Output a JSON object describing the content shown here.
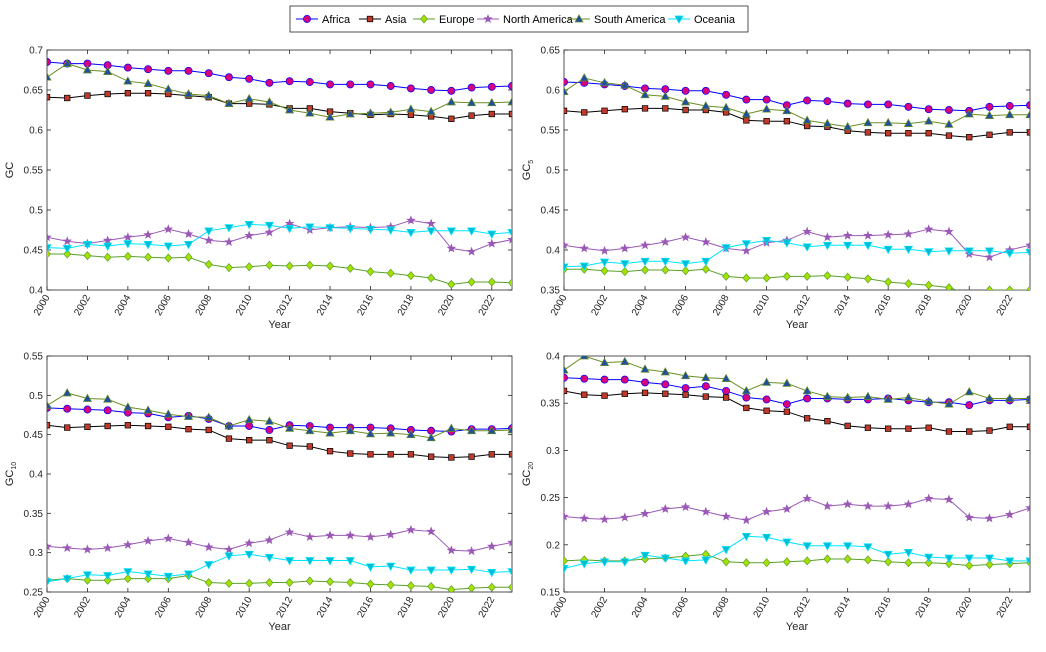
{
  "legend": [
    {
      "name": "Africa",
      "color": "#0000ff",
      "marker": "circle",
      "fill": "#d9007e"
    },
    {
      "name": "Asia",
      "color": "#000000",
      "marker": "square",
      "fill": "#c0392b"
    },
    {
      "name": "Europe",
      "color": "#5aa02c",
      "marker": "diamond",
      "fill": "#a5e000"
    },
    {
      "name": "North America",
      "color": "#9b59b6",
      "marker": "star",
      "fill": "#9b59b6"
    },
    {
      "name": "South America",
      "color": "#6b8e23",
      "marker": "triangle-up",
      "fill": "#1f4fa0"
    },
    {
      "name": "Oceania",
      "color": "#00e5ff",
      "marker": "triangle-down",
      "fill": "#00bcd4"
    }
  ],
  "chart_data": [
    {
      "type": "line",
      "ylabel": "GC",
      "ylabel_sub": "",
      "xlabel": "Year",
      "xlim": [
        2000,
        2023
      ],
      "ylim": [
        0.4,
        0.7
      ],
      "yticks": [
        "0.4",
        "0.45",
        "0.5",
        "0.55",
        "0.6",
        "0.65",
        "0.7"
      ],
      "xticks": [
        "2000",
        "2002",
        "2004",
        "2006",
        "2008",
        "2010",
        "2012",
        "2014",
        "2016",
        "2018",
        "2020",
        "2022"
      ],
      "x": [
        2000,
        2001,
        2002,
        2003,
        2004,
        2005,
        2006,
        2007,
        2008,
        2009,
        2010,
        2011,
        2012,
        2013,
        2014,
        2015,
        2016,
        2017,
        2018,
        2019,
        2020,
        2021,
        2022,
        2023
      ],
      "series": [
        {
          "name": "Africa",
          "values": [
            0.685,
            0.683,
            0.683,
            0.681,
            0.678,
            0.676,
            0.674,
            0.674,
            0.671,
            0.666,
            0.664,
            0.659,
            0.661,
            0.66,
            0.657,
            0.657,
            0.657,
            0.655,
            0.652,
            0.65,
            0.649,
            0.653,
            0.654,
            0.655
          ]
        },
        {
          "name": "Asia",
          "values": [
            0.641,
            0.64,
            0.643,
            0.645,
            0.646,
            0.646,
            0.645,
            0.643,
            0.641,
            0.633,
            0.633,
            0.632,
            0.627,
            0.627,
            0.623,
            0.621,
            0.619,
            0.62,
            0.619,
            0.617,
            0.614,
            0.618,
            0.62,
            0.62
          ]
        },
        {
          "name": "Europe",
          "values": [
            0.445,
            0.445,
            0.443,
            0.441,
            0.442,
            0.441,
            0.44,
            0.441,
            0.432,
            0.428,
            0.429,
            0.431,
            0.43,
            0.431,
            0.43,
            0.427,
            0.423,
            0.421,
            0.418,
            0.415,
            0.407,
            0.41,
            0.41,
            0.409
          ]
        },
        {
          "name": "North America",
          "values": [
            0.466,
            0.461,
            0.458,
            0.462,
            0.466,
            0.469,
            0.476,
            0.47,
            0.462,
            0.46,
            0.468,
            0.472,
            0.483,
            0.475,
            0.478,
            0.479,
            0.478,
            0.479,
            0.487,
            0.483,
            0.452,
            0.448,
            0.458,
            0.463
          ]
        },
        {
          "name": "South America",
          "values": [
            0.666,
            0.683,
            0.675,
            0.673,
            0.661,
            0.658,
            0.651,
            0.645,
            0.643,
            0.633,
            0.639,
            0.635,
            0.625,
            0.621,
            0.616,
            0.62,
            0.621,
            0.622,
            0.626,
            0.623,
            0.635,
            0.634,
            0.634,
            0.635
          ]
        },
        {
          "name": "Oceania",
          "values": [
            0.453,
            0.452,
            0.457,
            0.455,
            0.458,
            0.457,
            0.455,
            0.457,
            0.474,
            0.478,
            0.482,
            0.481,
            0.477,
            0.479,
            0.478,
            0.477,
            0.476,
            0.475,
            0.472,
            0.474,
            0.474,
            0.474,
            0.47,
            0.472
          ]
        }
      ]
    },
    {
      "type": "line",
      "ylabel": "GC",
      "ylabel_sub": "5",
      "xlabel": "Year",
      "xlim": [
        2000,
        2023
      ],
      "ylim": [
        0.35,
        0.65
      ],
      "yticks": [
        "0.35",
        "0.4",
        "0.45",
        "0.5",
        "0.55",
        "0.6",
        "0.65"
      ],
      "xticks": [
        "2000",
        "2002",
        "2004",
        "2006",
        "2008",
        "2010",
        "2012",
        "2014",
        "2016",
        "2018",
        "2020",
        "2022"
      ],
      "x": [
        2000,
        2001,
        2002,
        2003,
        2004,
        2005,
        2006,
        2007,
        2008,
        2009,
        2010,
        2011,
        2012,
        2013,
        2014,
        2015,
        2016,
        2017,
        2018,
        2019,
        2020,
        2021,
        2022,
        2023
      ],
      "series": [
        {
          "name": "Africa",
          "values": [
            0.61,
            0.609,
            0.607,
            0.605,
            0.602,
            0.601,
            0.599,
            0.599,
            0.594,
            0.588,
            0.588,
            0.581,
            0.587,
            0.586,
            0.583,
            0.582,
            0.582,
            0.579,
            0.576,
            0.575,
            0.574,
            0.579,
            0.58,
            0.581
          ]
        },
        {
          "name": "Asia",
          "values": [
            0.574,
            0.572,
            0.574,
            0.576,
            0.577,
            0.577,
            0.575,
            0.575,
            0.572,
            0.562,
            0.561,
            0.561,
            0.555,
            0.554,
            0.549,
            0.547,
            0.546,
            0.546,
            0.546,
            0.543,
            0.541,
            0.544,
            0.547,
            0.547
          ]
        },
        {
          "name": "Europe",
          "values": [
            0.376,
            0.376,
            0.374,
            0.373,
            0.375,
            0.375,
            0.374,
            0.376,
            0.367,
            0.365,
            0.365,
            0.367,
            0.367,
            0.368,
            0.366,
            0.364,
            0.36,
            0.358,
            0.356,
            0.353,
            0.345,
            0.35,
            0.35,
            0.35
          ]
        },
        {
          "name": "North America",
          "values": [
            0.406,
            0.402,
            0.399,
            0.402,
            0.406,
            0.41,
            0.416,
            0.41,
            0.402,
            0.399,
            0.409,
            0.412,
            0.423,
            0.416,
            0.418,
            0.418,
            0.419,
            0.42,
            0.426,
            0.423,
            0.395,
            0.391,
            0.4,
            0.406
          ]
        },
        {
          "name": "South America",
          "values": [
            0.598,
            0.615,
            0.609,
            0.606,
            0.594,
            0.592,
            0.585,
            0.58,
            0.578,
            0.57,
            0.576,
            0.574,
            0.562,
            0.558,
            0.554,
            0.559,
            0.559,
            0.558,
            0.561,
            0.557,
            0.57,
            0.568,
            0.569,
            0.569
          ]
        },
        {
          "name": "Oceania",
          "values": [
            0.379,
            0.38,
            0.385,
            0.383,
            0.386,
            0.386,
            0.383,
            0.386,
            0.403,
            0.408,
            0.412,
            0.409,
            0.404,
            0.406,
            0.406,
            0.406,
            0.401,
            0.401,
            0.398,
            0.399,
            0.399,
            0.399,
            0.396,
            0.397
          ]
        }
      ]
    },
    {
      "type": "line",
      "ylabel": "GC",
      "ylabel_sub": "10",
      "xlabel": "Year",
      "xlim": [
        2000,
        2023
      ],
      "ylim": [
        0.25,
        0.55
      ],
      "yticks": [
        "0.25",
        "0.3",
        "0.35",
        "0.4",
        "0.45",
        "0.5",
        "0.55"
      ],
      "xticks": [
        "2000",
        "2002",
        "2004",
        "2006",
        "2008",
        "2010",
        "2012",
        "2014",
        "2016",
        "2018",
        "2020",
        "2022"
      ],
      "x": [
        2000,
        2001,
        2002,
        2003,
        2004,
        2005,
        2006,
        2007,
        2008,
        2009,
        2010,
        2011,
        2012,
        2013,
        2014,
        2015,
        2016,
        2017,
        2018,
        2019,
        2020,
        2021,
        2022,
        2023
      ],
      "series": [
        {
          "name": "Africa",
          "values": [
            0.484,
            0.483,
            0.482,
            0.481,
            0.478,
            0.477,
            0.472,
            0.474,
            0.47,
            0.461,
            0.461,
            0.456,
            0.462,
            0.461,
            0.459,
            0.459,
            0.459,
            0.458,
            0.456,
            0.455,
            0.454,
            0.457,
            0.457,
            0.458
          ]
        },
        {
          "name": "Asia",
          "values": [
            0.462,
            0.459,
            0.46,
            0.461,
            0.462,
            0.461,
            0.46,
            0.457,
            0.456,
            0.445,
            0.443,
            0.443,
            0.436,
            0.435,
            0.429,
            0.426,
            0.425,
            0.425,
            0.425,
            0.422,
            0.421,
            0.422,
            0.425,
            0.425
          ]
        },
        {
          "name": "Europe",
          "values": [
            0.265,
            0.267,
            0.265,
            0.265,
            0.267,
            0.267,
            0.267,
            0.271,
            0.262,
            0.261,
            0.261,
            0.262,
            0.262,
            0.264,
            0.263,
            0.262,
            0.26,
            0.259,
            0.258,
            0.257,
            0.253,
            0.255,
            0.256,
            0.256
          ]
        },
        {
          "name": "North America",
          "values": [
            0.308,
            0.306,
            0.304,
            0.306,
            0.31,
            0.315,
            0.318,
            0.313,
            0.307,
            0.304,
            0.312,
            0.316,
            0.326,
            0.32,
            0.322,
            0.322,
            0.32,
            0.323,
            0.329,
            0.327,
            0.303,
            0.302,
            0.308,
            0.313
          ]
        },
        {
          "name": "South America",
          "values": [
            0.487,
            0.503,
            0.496,
            0.495,
            0.485,
            0.481,
            0.476,
            0.473,
            0.472,
            0.461,
            0.469,
            0.467,
            0.458,
            0.455,
            0.452,
            0.455,
            0.451,
            0.452,
            0.45,
            0.446,
            0.458,
            0.455,
            0.455,
            0.456
          ]
        },
        {
          "name": "Oceania",
          "values": [
            0.263,
            0.267,
            0.272,
            0.271,
            0.276,
            0.273,
            0.27,
            0.273,
            0.285,
            0.296,
            0.298,
            0.294,
            0.29,
            0.29,
            0.29,
            0.29,
            0.282,
            0.283,
            0.278,
            0.278,
            0.278,
            0.279,
            0.275,
            0.276
          ]
        }
      ]
    },
    {
      "type": "line",
      "ylabel": "GC",
      "ylabel_sub": "20",
      "xlabel": "Year",
      "xlim": [
        2000,
        2023
      ],
      "ylim": [
        0.15,
        0.4
      ],
      "yticks": [
        "0.15",
        "0.2",
        "0.25",
        "0.3",
        "0.35",
        "0.4"
      ],
      "xticks": [
        "2000",
        "2002",
        "2004",
        "2006",
        "2008",
        "2010",
        "2012",
        "2014",
        "2016",
        "2018",
        "2020",
        "2022"
      ],
      "x": [
        2000,
        2001,
        2002,
        2003,
        2004,
        2005,
        2006,
        2007,
        2008,
        2009,
        2010,
        2011,
        2012,
        2013,
        2014,
        2015,
        2016,
        2017,
        2018,
        2019,
        2020,
        2021,
        2022,
        2023
      ],
      "series": [
        {
          "name": "Africa",
          "values": [
            0.377,
            0.376,
            0.375,
            0.375,
            0.372,
            0.37,
            0.366,
            0.368,
            0.363,
            0.356,
            0.354,
            0.349,
            0.355,
            0.355,
            0.354,
            0.354,
            0.355,
            0.353,
            0.351,
            0.351,
            0.348,
            0.353,
            0.353,
            0.354
          ]
        },
        {
          "name": "Asia",
          "values": [
            0.363,
            0.359,
            0.358,
            0.36,
            0.361,
            0.36,
            0.359,
            0.357,
            0.356,
            0.345,
            0.342,
            0.341,
            0.334,
            0.331,
            0.326,
            0.324,
            0.323,
            0.323,
            0.324,
            0.32,
            0.32,
            0.321,
            0.325,
            0.325
          ]
        },
        {
          "name": "Europe",
          "values": [
            0.183,
            0.184,
            0.183,
            0.183,
            0.185,
            0.186,
            0.188,
            0.19,
            0.182,
            0.181,
            0.181,
            0.182,
            0.183,
            0.185,
            0.185,
            0.184,
            0.182,
            0.181,
            0.181,
            0.18,
            0.178,
            0.179,
            0.18,
            0.181
          ]
        },
        {
          "name": "North America",
          "values": [
            0.23,
            0.228,
            0.227,
            0.229,
            0.233,
            0.238,
            0.24,
            0.235,
            0.23,
            0.226,
            0.235,
            0.238,
            0.249,
            0.241,
            0.243,
            0.241,
            0.241,
            0.243,
            0.249,
            0.248,
            0.229,
            0.228,
            0.232,
            0.239
          ]
        },
        {
          "name": "South America",
          "values": [
            0.385,
            0.4,
            0.393,
            0.394,
            0.386,
            0.383,
            0.379,
            0.377,
            0.376,
            0.363,
            0.372,
            0.371,
            0.363,
            0.357,
            0.356,
            0.357,
            0.354,
            0.356,
            0.352,
            0.349,
            0.362,
            0.355,
            0.355,
            0.355
          ]
        },
        {
          "name": "Oceania",
          "values": [
            0.175,
            0.18,
            0.182,
            0.182,
            0.189,
            0.186,
            0.183,
            0.184,
            0.195,
            0.209,
            0.208,
            0.203,
            0.199,
            0.199,
            0.199,
            0.198,
            0.19,
            0.192,
            0.187,
            0.186,
            0.186,
            0.186,
            0.183,
            0.183
          ]
        }
      ]
    }
  ]
}
